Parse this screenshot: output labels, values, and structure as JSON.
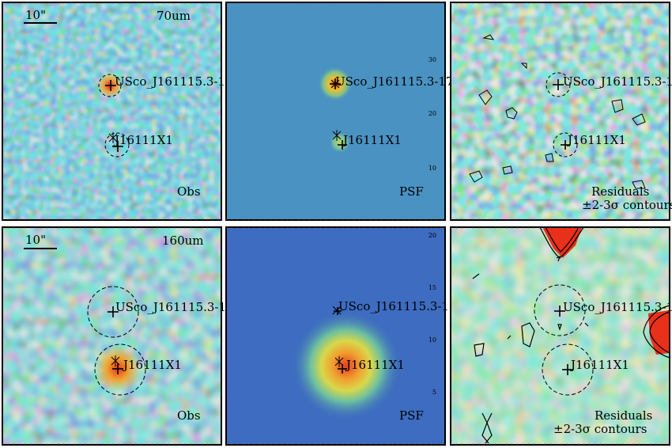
{
  "figure": {
    "scale_bar_label": "10\"",
    "rows": [
      {
        "band": "70um",
        "target_label": "USco_J161115.3-17",
        "companion_label": "J16111X1",
        "panels": [
          {
            "kind": "obs",
            "corner_label": "Obs",
            "corner_label2": ""
          },
          {
            "kind": "psf",
            "corner_label": "PSF",
            "corner_label2": ""
          },
          {
            "kind": "res",
            "corner_label": "Residuals",
            "corner_label2": "±2-3σ contours"
          }
        ],
        "psf_ticks": [
          "30",
          "20",
          "10"
        ]
      },
      {
        "band": "160um",
        "target_label": "USco_J161115.3-1",
        "companion_label": "J16111X1",
        "panels": [
          {
            "kind": "obs",
            "corner_label": "Obs",
            "corner_label2": ""
          },
          {
            "kind": "psf",
            "corner_label": "PSF",
            "corner_label2": ""
          },
          {
            "kind": "res",
            "corner_label": "Residuals",
            "corner_label2": "±2-3σ contours"
          }
        ],
        "psf_ticks": [
          "20",
          "15",
          "10",
          "5"
        ]
      }
    ]
  },
  "colors": {
    "panel_border": "#000000",
    "obs_base": "#3f8fc4",
    "psf70_base": "#4a92c2",
    "psf160_base": "#3d6cc0",
    "hot": "#e83a1a",
    "contour": "#000000"
  }
}
